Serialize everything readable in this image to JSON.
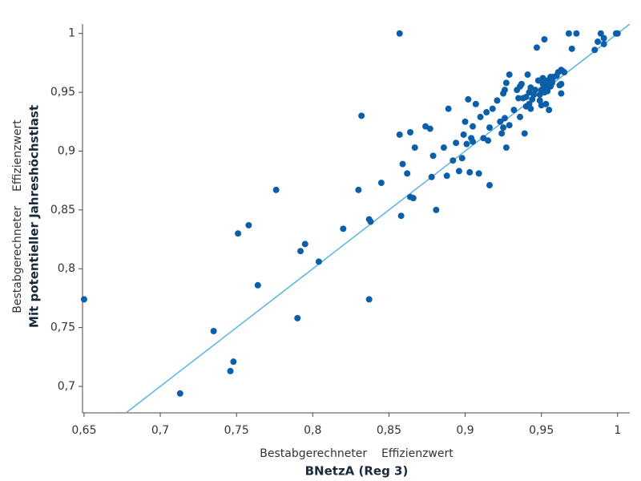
{
  "chart_data": {
    "type": "scatter",
    "x_label": "Bestabgerechneter    Effizienzwert",
    "x_label_bold": "BNetzA (Reg 3)",
    "y_label": "Bestabgerechneter    Effizienzwert",
    "y_label_bold": "Mit potentieller Jahreshöchstlast",
    "xlim": [
      0.649,
      1.008
    ],
    "ylim": [
      0.6775,
      1.008
    ],
    "xticks": [
      {
        "value": 0.65,
        "label": "0,65"
      },
      {
        "value": 0.7,
        "label": "0,7"
      },
      {
        "value": 0.75,
        "label": "0,75"
      },
      {
        "value": 0.8,
        "label": "0,8"
      },
      {
        "value": 0.85,
        "label": "0,85"
      },
      {
        "value": 0.9,
        "label": "0,9"
      },
      {
        "value": 0.95,
        "label": "0,95"
      },
      1
    ],
    "yticks": [
      {
        "value": 0.7,
        "label": "0,7"
      },
      {
        "value": 0.75,
        "label": "0,75"
      },
      {
        "value": 0.8,
        "label": "0,8"
      },
      {
        "value": 0.85,
        "label": "0,85"
      },
      {
        "value": 0.9,
        "label": "0,9"
      },
      {
        "value": 0.95,
        "label": "0,95"
      },
      1
    ],
    "grid": false,
    "identity_line": true,
    "line_color": "#5ab4e0",
    "color": "#0b5ea8",
    "x": [
      0.65,
      0.713,
      0.735,
      0.746,
      0.748,
      0.751,
      0.758,
      0.764,
      0.776,
      0.79,
      0.792,
      0.795,
      0.804,
      0.82,
      0.83,
      0.832,
      0.837,
      0.838,
      0.837,
      0.845,
      0.857,
      0.857,
      0.858,
      0.859,
      0.862,
      0.864,
      0.864,
      0.866,
      0.867,
      0.874,
      0.877,
      0.878,
      0.879,
      0.881,
      0.886,
      0.888,
      0.889,
      0.892,
      0.894,
      0.896,
      0.898,
      0.899,
      0.9,
      0.901,
      0.902,
      0.903,
      0.904,
      0.905,
      0.905,
      0.907,
      0.909,
      0.91,
      0.912,
      0.914,
      0.915,
      0.916,
      0.916,
      0.918,
      0.921,
      0.923,
      0.924,
      0.925,
      0.925,
      0.926,
      0.926,
      0.927,
      0.927,
      0.929,
      0.929,
      0.932,
      0.934,
      0.935,
      0.936,
      0.936,
      0.937,
      0.938,
      0.939,
      0.94,
      0.94,
      0.941,
      0.942,
      0.942,
      0.943,
      0.943,
      0.944,
      0.945,
      0.946,
      0.947,
      0.948,
      0.949,
      0.949,
      0.95,
      0.95,
      0.951,
      0.951,
      0.952,
      0.952,
      0.953,
      0.953,
      0.954,
      0.954,
      0.955,
      0.955,
      0.956,
      0.956,
      0.957,
      0.957,
      0.958,
      0.96,
      0.961,
      0.962,
      0.963,
      0.963,
      0.963,
      0.964,
      0.965,
      0.968,
      0.97,
      0.973,
      0.985,
      0.987,
      0.989,
      0.991,
      0.991,
      0.999,
      1.0
    ],
    "values": [
      0.774,
      0.694,
      0.747,
      0.713,
      0.721,
      0.83,
      0.837,
      0.786,
      0.867,
      0.758,
      0.815,
      0.821,
      0.806,
      0.834,
      0.867,
      0.93,
      0.842,
      0.84,
      0.774,
      0.873,
      1.0,
      0.914,
      0.845,
      0.889,
      0.881,
      0.916,
      0.861,
      0.86,
      0.903,
      0.921,
      0.919,
      0.878,
      0.896,
      0.85,
      0.903,
      0.879,
      0.936,
      0.892,
      0.907,
      0.883,
      0.894,
      0.914,
      0.925,
      0.906,
      0.944,
      0.882,
      0.911,
      0.908,
      0.921,
      0.94,
      0.881,
      0.929,
      0.911,
      0.933,
      0.909,
      0.871,
      0.92,
      0.936,
      0.943,
      0.925,
      0.915,
      0.92,
      0.949,
      0.928,
      0.952,
      0.958,
      0.903,
      0.922,
      0.965,
      0.935,
      0.952,
      0.945,
      0.929,
      0.955,
      0.957,
      0.945,
      0.915,
      0.938,
      0.946,
      0.965,
      0.94,
      0.95,
      0.936,
      0.954,
      0.944,
      0.948,
      0.952,
      0.988,
      0.96,
      0.943,
      0.948,
      0.939,
      0.952,
      0.957,
      0.962,
      0.95,
      0.995,
      0.94,
      0.955,
      0.96,
      0.951,
      0.956,
      0.935,
      0.963,
      0.955,
      0.96,
      0.958,
      0.963,
      0.964,
      0.967,
      0.956,
      0.949,
      0.969,
      0.957,
      0.968,
      0.967,
      1.0,
      0.987,
      1.0,
      0.986,
      0.993,
      1.0,
      0.996,
      0.991,
      1.0,
      1.0
    ]
  }
}
